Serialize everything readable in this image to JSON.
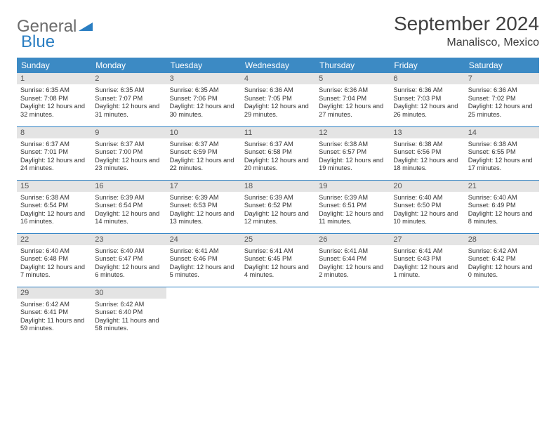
{
  "logo": {
    "text_gray": "General",
    "text_blue": "Blue"
  },
  "title": "September 2024",
  "location": "Manalisco, Mexico",
  "colors": {
    "header_bg": "#3c8ac4",
    "header_text": "#ffffff",
    "daynum_bg": "#e4e4e4",
    "daynum_text": "#555555",
    "cell_border": "#2a7ec2",
    "logo_gray": "#6b6b6b",
    "logo_blue": "#2a7ec2",
    "body_text": "#333333",
    "title_text": "#404040",
    "page_bg": "#ffffff"
  },
  "weekdays": [
    "Sunday",
    "Monday",
    "Tuesday",
    "Wednesday",
    "Thursday",
    "Friday",
    "Saturday"
  ],
  "weeks": [
    [
      {
        "num": "1",
        "sunrise": "6:35 AM",
        "sunset": "7:08 PM",
        "daylight": "12 hours and 32 minutes."
      },
      {
        "num": "2",
        "sunrise": "6:35 AM",
        "sunset": "7:07 PM",
        "daylight": "12 hours and 31 minutes."
      },
      {
        "num": "3",
        "sunrise": "6:35 AM",
        "sunset": "7:06 PM",
        "daylight": "12 hours and 30 minutes."
      },
      {
        "num": "4",
        "sunrise": "6:36 AM",
        "sunset": "7:05 PM",
        "daylight": "12 hours and 29 minutes."
      },
      {
        "num": "5",
        "sunrise": "6:36 AM",
        "sunset": "7:04 PM",
        "daylight": "12 hours and 27 minutes."
      },
      {
        "num": "6",
        "sunrise": "6:36 AM",
        "sunset": "7:03 PM",
        "daylight": "12 hours and 26 minutes."
      },
      {
        "num": "7",
        "sunrise": "6:36 AM",
        "sunset": "7:02 PM",
        "daylight": "12 hours and 25 minutes."
      }
    ],
    [
      {
        "num": "8",
        "sunrise": "6:37 AM",
        "sunset": "7:01 PM",
        "daylight": "12 hours and 24 minutes."
      },
      {
        "num": "9",
        "sunrise": "6:37 AM",
        "sunset": "7:00 PM",
        "daylight": "12 hours and 23 minutes."
      },
      {
        "num": "10",
        "sunrise": "6:37 AM",
        "sunset": "6:59 PM",
        "daylight": "12 hours and 22 minutes."
      },
      {
        "num": "11",
        "sunrise": "6:37 AM",
        "sunset": "6:58 PM",
        "daylight": "12 hours and 20 minutes."
      },
      {
        "num": "12",
        "sunrise": "6:38 AM",
        "sunset": "6:57 PM",
        "daylight": "12 hours and 19 minutes."
      },
      {
        "num": "13",
        "sunrise": "6:38 AM",
        "sunset": "6:56 PM",
        "daylight": "12 hours and 18 minutes."
      },
      {
        "num": "14",
        "sunrise": "6:38 AM",
        "sunset": "6:55 PM",
        "daylight": "12 hours and 17 minutes."
      }
    ],
    [
      {
        "num": "15",
        "sunrise": "6:38 AM",
        "sunset": "6:54 PM",
        "daylight": "12 hours and 16 minutes."
      },
      {
        "num": "16",
        "sunrise": "6:39 AM",
        "sunset": "6:54 PM",
        "daylight": "12 hours and 14 minutes."
      },
      {
        "num": "17",
        "sunrise": "6:39 AM",
        "sunset": "6:53 PM",
        "daylight": "12 hours and 13 minutes."
      },
      {
        "num": "18",
        "sunrise": "6:39 AM",
        "sunset": "6:52 PM",
        "daylight": "12 hours and 12 minutes."
      },
      {
        "num": "19",
        "sunrise": "6:39 AM",
        "sunset": "6:51 PM",
        "daylight": "12 hours and 11 minutes."
      },
      {
        "num": "20",
        "sunrise": "6:40 AM",
        "sunset": "6:50 PM",
        "daylight": "12 hours and 10 minutes."
      },
      {
        "num": "21",
        "sunrise": "6:40 AM",
        "sunset": "6:49 PM",
        "daylight": "12 hours and 8 minutes."
      }
    ],
    [
      {
        "num": "22",
        "sunrise": "6:40 AM",
        "sunset": "6:48 PM",
        "daylight": "12 hours and 7 minutes."
      },
      {
        "num": "23",
        "sunrise": "6:40 AM",
        "sunset": "6:47 PM",
        "daylight": "12 hours and 6 minutes."
      },
      {
        "num": "24",
        "sunrise": "6:41 AM",
        "sunset": "6:46 PM",
        "daylight": "12 hours and 5 minutes."
      },
      {
        "num": "25",
        "sunrise": "6:41 AM",
        "sunset": "6:45 PM",
        "daylight": "12 hours and 4 minutes."
      },
      {
        "num": "26",
        "sunrise": "6:41 AM",
        "sunset": "6:44 PM",
        "daylight": "12 hours and 2 minutes."
      },
      {
        "num": "27",
        "sunrise": "6:41 AM",
        "sunset": "6:43 PM",
        "daylight": "12 hours and 1 minute."
      },
      {
        "num": "28",
        "sunrise": "6:42 AM",
        "sunset": "6:42 PM",
        "daylight": "12 hours and 0 minutes."
      }
    ],
    [
      {
        "num": "29",
        "sunrise": "6:42 AM",
        "sunset": "6:41 PM",
        "daylight": "11 hours and 59 minutes."
      },
      {
        "num": "30",
        "sunrise": "6:42 AM",
        "sunset": "6:40 PM",
        "daylight": "11 hours and 58 minutes."
      },
      null,
      null,
      null,
      null,
      null
    ]
  ],
  "labels": {
    "sunrise": "Sunrise:",
    "sunset": "Sunset:",
    "daylight": "Daylight:"
  }
}
